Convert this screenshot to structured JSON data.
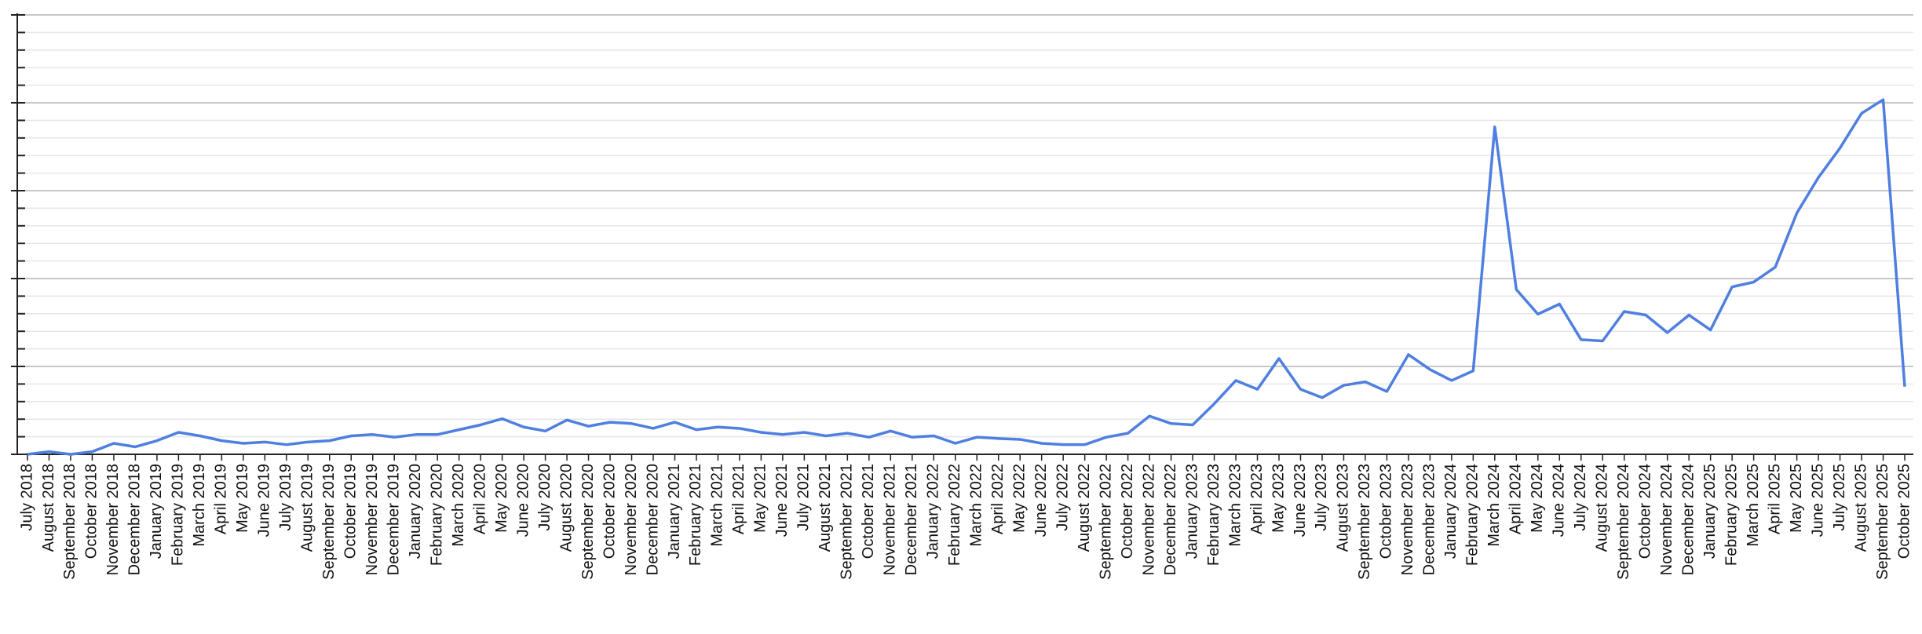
{
  "chart_data": {
    "type": "line",
    "categories": [
      "July 2018",
      "August 2018",
      "September 2018",
      "October 2018",
      "November 2018",
      "December 2018",
      "January 2019",
      "February 2019",
      "March 2019",
      "April 2019",
      "May 2019",
      "June 2019",
      "July 2019",
      "August 2019",
      "September 2019",
      "October 2019",
      "November 2019",
      "December 2019",
      "January 2020",
      "February 2020",
      "March 2020",
      "April 2020",
      "May 2020",
      "June 2020",
      "July 2020",
      "August 2020",
      "September 2020",
      "October 2020",
      "November 2020",
      "December 2020",
      "January 2021",
      "February 2021",
      "March 2021",
      "April 2021",
      "May 2021",
      "June 2021",
      "July 2021",
      "August 2021",
      "September 2021",
      "October 2021",
      "November 2021",
      "December 2021",
      "January 2022",
      "February 2022",
      "March 2022",
      "April 2022",
      "May 2022",
      "June 2022",
      "July 2022",
      "August 2022",
      "September 2022",
      "October 2022",
      "November 2022",
      "December 2022",
      "January 2023",
      "February 2023",
      "March 2023",
      "April 2023",
      "May 2023",
      "June 2023",
      "July 2023",
      "August 2023",
      "September 2023",
      "October 2023",
      "November 2023",
      "December 2023",
      "January 2024",
      "February 2024",
      "March 2024",
      "April 2024",
      "May 2024",
      "June 2024",
      "July 2024",
      "August 2024",
      "September 2024",
      "October 2024",
      "November 2024",
      "December 2024",
      "January 2025",
      "February 2025",
      "March 2025",
      "April 2025",
      "May 2025",
      "June 2025",
      "July 2025",
      "August 2025",
      "September 2025",
      "October 2025"
    ],
    "series": [
      {
        "color": "#4f7fe0",
        "values": [
          0,
          0.6,
          0,
          0.6,
          2.5,
          1.7,
          3.1,
          5,
          4.2,
          3.1,
          2.5,
          2.8,
          2.2,
          2.8,
          3.1,
          4.2,
          4.5,
          3.9,
          4.5,
          4.5,
          5.6,
          6.7,
          8.1,
          6.2,
          5.3,
          7.8,
          6.4,
          7.3,
          7,
          5.9,
          7.3,
          5.6,
          6.2,
          5.9,
          5,
          4.5,
          5,
          4.2,
          4.8,
          3.9,
          5.3,
          3.9,
          4.2,
          2.5,
          3.9,
          3.6,
          3.4,
          2.5,
          2.2,
          2.2,
          3.9,
          4.8,
          8.7,
          7,
          6.7,
          11.5,
          16.8,
          14.8,
          21.8,
          14.8,
          12.9,
          15.7,
          16.5,
          14.3,
          22.7,
          19.3,
          16.8,
          19,
          74.5,
          37.5,
          31.9,
          34.2,
          26.1,
          25.8,
          32.5,
          31.7,
          27.7,
          31.7,
          28.3,
          38.1,
          39.2,
          42.6,
          54.9,
          63,
          69.7,
          77.6,
          80.7,
          15.4
        ]
      }
    ],
    "ylim": [
      0,
      100
    ],
    "yticks": [
      0,
      20,
      40,
      60,
      80,
      100
    ],
    "minor_yticks": [
      4,
      8,
      12,
      16,
      24,
      28,
      32,
      36,
      44,
      48,
      52,
      56,
      64,
      68,
      72,
      76,
      84,
      88,
      92,
      96
    ],
    "grid": true
  }
}
